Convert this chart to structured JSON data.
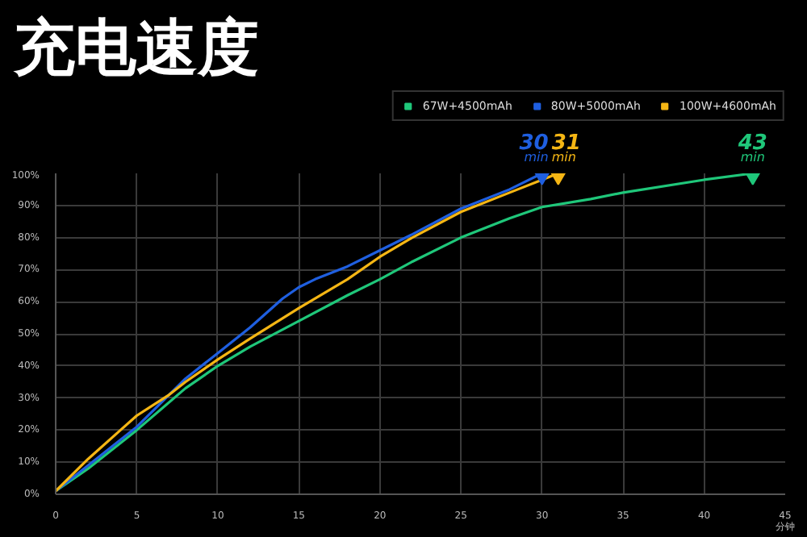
{
  "chart_data": {
    "type": "line",
    "title": "充电速度",
    "xlabel": "分钟",
    "x": [
      0,
      2,
      5,
      8,
      10,
      12,
      15,
      18,
      20,
      22,
      25,
      28,
      30,
      33,
      35,
      40,
      43
    ],
    "series": [
      {
        "name": "67W+4500mAh",
        "color": "#1fc77a",
        "values": [
          1,
          8,
          20,
          33,
          40,
          46,
          54,
          62,
          67,
          72.5,
          80,
          86,
          89.5,
          92,
          94,
          98,
          100
        ]
      },
      {
        "name": "80W+5000mAh",
        "color": "#1f5fe0",
        "x": [
          0,
          2,
          5,
          8,
          10,
          12,
          14,
          15,
          16,
          18,
          20,
          22,
          25,
          28,
          30
        ],
        "values": [
          1,
          9,
          21,
          36,
          44,
          52,
          61,
          64.5,
          67,
          71,
          76,
          81,
          89,
          95,
          100
        ]
      },
      {
        "name": "100W+4600mAh",
        "color": "#f5b614",
        "x": [
          0,
          2,
          4,
          5,
          7,
          8,
          10,
          12,
          15,
          18,
          20,
          22,
          25,
          28,
          30,
          31
        ],
        "values": [
          1,
          11,
          20,
          24.5,
          31,
          35,
          42,
          48.5,
          58,
          67,
          74,
          80,
          88,
          94,
          98,
          100
        ]
      }
    ],
    "annotations": [
      {
        "text": "43\nmin",
        "x": 43,
        "y": 100
      },
      {
        "text": "30\nmin",
        "x": 30,
        "y": 100
      },
      {
        "text": "31\nmin",
        "x": 31,
        "y": 100
      }
    ],
    "xlim": [
      0,
      45
    ],
    "ylim": [
      0,
      100
    ],
    "xticks": [
      0,
      5,
      10,
      15,
      20,
      25,
      30,
      35,
      40,
      45
    ],
    "yticks": [
      {
        "value": 0,
        "label": "0%"
      },
      {
        "value": 10,
        "label": "10%"
      },
      {
        "value": 20,
        "label": "20%"
      },
      {
        "value": 30,
        "label": "30%"
      },
      {
        "value": 40,
        "label": "40%"
      },
      {
        "value": 50,
        "label": "50%"
      },
      {
        "value": 60,
        "label": "60%"
      },
      {
        "value": 70,
        "label": "70%"
      },
      {
        "value": 80,
        "label": "80%"
      },
      {
        "value": 90,
        "label": "90%"
      },
      {
        "value": 100,
        "label": "100%"
      }
    ],
    "grid": true,
    "legend": "top",
    "marker": "none",
    "line_style": "solid"
  }
}
